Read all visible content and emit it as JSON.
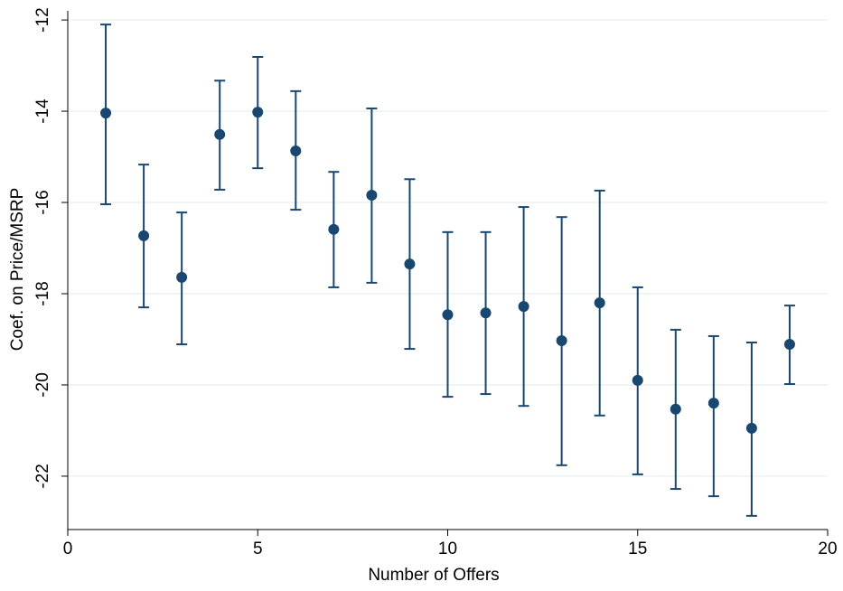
{
  "chart_data": {
    "type": "errorbar",
    "x_label": "Number of Offers",
    "y_label": "Coef. on Price/MSRP",
    "x": [
      1,
      2,
      3,
      4,
      5,
      6,
      7,
      8,
      9,
      10,
      11,
      12,
      13,
      14,
      15,
      16,
      17,
      18,
      19
    ],
    "values": [
      -14.04,
      -16.73,
      -17.64,
      -14.51,
      -14.02,
      -14.87,
      -16.59,
      -15.84,
      -17.35,
      -18.46,
      -18.42,
      -18.28,
      -19.03,
      -18.2,
      -19.9,
      -20.53,
      -20.4,
      -20.95,
      -19.11
    ],
    "lower": [
      -16.04,
      -18.3,
      -19.11,
      -15.72,
      -15.25,
      -16.16,
      -17.86,
      -17.76,
      -19.21,
      -20.26,
      -20.2,
      -20.46,
      -21.76,
      -20.67,
      -21.96,
      -22.28,
      -22.44,
      -22.87,
      -19.98
    ],
    "upper": [
      -12.1,
      -15.17,
      -16.22,
      -13.33,
      -12.81,
      -13.56,
      -15.33,
      -13.94,
      -15.49,
      -16.65,
      -16.65,
      -16.1,
      -16.32,
      -15.74,
      -17.86,
      -18.79,
      -18.93,
      -19.07,
      -18.26
    ],
    "color": "#1a476f",
    "xlim": [
      0,
      20
    ],
    "xticks": [
      0,
      5,
      10,
      15,
      20
    ],
    "ylim": [
      -23.17,
      -11.8
    ],
    "yticks": [
      -22,
      -20,
      -18,
      -16,
      -14,
      -12
    ],
    "grid": true
  }
}
